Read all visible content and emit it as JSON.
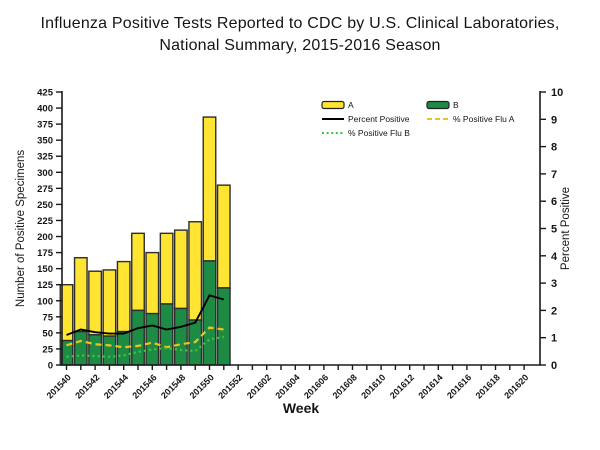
{
  "title": {
    "line1": "Influenza Positive Tests Reported to CDC by U.S. Clinical Laboratories,",
    "line2": "National Summary, 2015-2016 Season"
  },
  "chart_data": {
    "type": "bar",
    "subtype": "stacked-bars-with-overlay-lines",
    "x_axis": {
      "label": "Week",
      "total_slots": 33,
      "tick_labels": [
        "201540",
        "201542",
        "201544",
        "201546",
        "201548",
        "201550",
        "201552",
        "201602",
        "201604",
        "201606",
        "201608",
        "201610",
        "201612",
        "201614",
        "201616",
        "201618",
        "201620"
      ]
    },
    "y_left": {
      "label": "Number of Positive Specimens",
      "min": 0,
      "max": 425,
      "step": 25
    },
    "y_right": {
      "label": "Percent Positive",
      "min": 0,
      "max": 10,
      "step": 1
    },
    "legend": [
      {
        "label": "A",
        "type": "box",
        "style": "solid",
        "color": "#FFE432"
      },
      {
        "label": "B",
        "type": "box",
        "style": "solid",
        "color": "#1E8B45"
      },
      {
        "label": "Percent Positive",
        "type": "line",
        "style": "solid",
        "color": "#000000"
      },
      {
        "label": "% Positive Flu A",
        "type": "line",
        "style": "dashed",
        "color": "#EFC31F"
      },
      {
        "label": "% Positive Flu B",
        "type": "line",
        "style": "dotted",
        "color": "#3FC43F"
      }
    ],
    "series": {
      "weeks": [
        "201540",
        "201541",
        "201542",
        "201543",
        "201544",
        "201545",
        "201546",
        "201547",
        "201548",
        "201549",
        "201550",
        "201551"
      ],
      "flu_a": [
        87,
        115,
        99,
        103,
        109,
        120,
        95,
        110,
        122,
        153,
        224,
        160
      ],
      "flu_b": [
        38,
        52,
        47,
        45,
        52,
        85,
        80,
        95,
        88,
        70,
        162,
        120
      ],
      "percent_positive": [
        1.1,
        1.3,
        1.2,
        1.15,
        1.15,
        1.35,
        1.45,
        1.3,
        1.4,
        1.55,
        2.55,
        2.4
      ],
      "percent_flu_a": [
        0.72,
        0.88,
        0.76,
        0.72,
        0.65,
        0.7,
        0.82,
        0.65,
        0.76,
        0.84,
        1.37,
        1.3
      ],
      "percent_flu_b": [
        0.3,
        0.35,
        0.33,
        0.3,
        0.35,
        0.48,
        0.57,
        0.62,
        0.55,
        0.51,
        0.94,
        1.03
      ]
    },
    "colors": {
      "bar_a": "#FFE432",
      "bar_b": "#1E8B45",
      "bar_outline": "#2d2d2d",
      "percent_positive_line": "#000000",
      "percent_flu_a_line": "#EFC31F",
      "percent_flu_b_line": "#3FC43F",
      "axis": "#1a1a1a"
    }
  }
}
